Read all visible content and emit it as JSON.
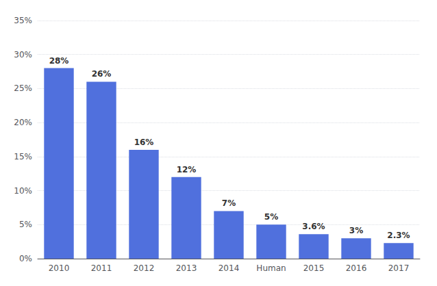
{
  "chart_data": {
    "type": "bar",
    "categories": [
      "2010",
      "2011",
      "2012",
      "2013",
      "2014",
      "Human",
      "2015",
      "2016",
      "2017"
    ],
    "values": [
      28,
      26,
      16,
      12,
      7,
      5,
      3.6,
      3,
      2.3
    ],
    "value_labels": [
      "28%",
      "26%",
      "16%",
      "12%",
      "7%",
      "5%",
      "3.6%",
      "3%",
      "2.3%"
    ],
    "data_labels": true,
    "ylim": [
      0,
      35
    ],
    "yticks": [
      {
        "value": 0,
        "label": "0%"
      },
      {
        "value": 5,
        "label": "5%"
      },
      {
        "value": 10,
        "label": "10%"
      },
      {
        "value": 15,
        "label": "15%"
      },
      {
        "value": 20,
        "label": "20%"
      },
      {
        "value": 25,
        "label": "25%"
      },
      {
        "value": 30,
        "label": "30%"
      },
      {
        "value": 35,
        "label": "35%"
      }
    ],
    "grid": true
  }
}
